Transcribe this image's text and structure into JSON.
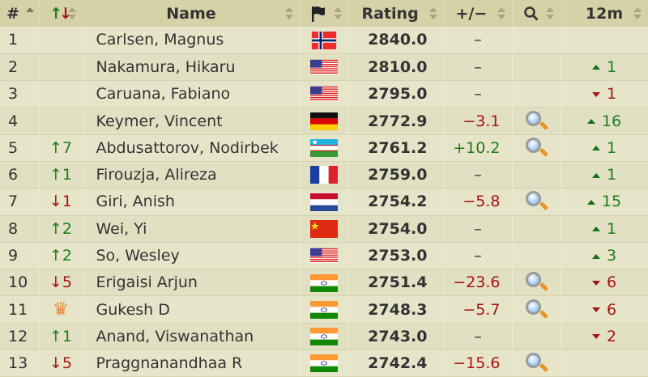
{
  "headers": {
    "rank": "#",
    "change": "↑↓",
    "name": "Name",
    "flag": "flag-icon",
    "rating": "Rating",
    "diff": "+/−",
    "search": "search-icon",
    "m12": "12m"
  },
  "rows": [
    {
      "rank": "1",
      "change": "",
      "change_dir": "",
      "name": "Carlsen, Magnus",
      "country": "NOR",
      "rating": "2840.0",
      "diff": "–",
      "diff_dir": "",
      "games": false,
      "m12": "",
      "m12_dir": ""
    },
    {
      "rank": "2",
      "change": "",
      "change_dir": "",
      "name": "Nakamura, Hikaru",
      "country": "USA",
      "rating": "2810.0",
      "diff": "–",
      "diff_dir": "",
      "games": false,
      "m12": "1",
      "m12_dir": "up"
    },
    {
      "rank": "3",
      "change": "",
      "change_dir": "",
      "name": "Caruana, Fabiano",
      "country": "USA",
      "rating": "2795.0",
      "diff": "–",
      "diff_dir": "",
      "games": false,
      "m12": "1",
      "m12_dir": "down"
    },
    {
      "rank": "4",
      "change": "",
      "change_dir": "",
      "name": "Keymer, Vincent",
      "country": "GER",
      "rating": "2772.9",
      "diff": "−3.1",
      "diff_dir": "down",
      "games": true,
      "m12": "16",
      "m12_dir": "up"
    },
    {
      "rank": "5",
      "change": "↑7",
      "change_dir": "up",
      "name": "Abdusattorov, Nodirbek",
      "country": "UZB",
      "rating": "2761.2",
      "diff": "+10.2",
      "diff_dir": "up",
      "games": true,
      "m12": "1",
      "m12_dir": "up"
    },
    {
      "rank": "6",
      "change": "↑1",
      "change_dir": "up",
      "name": "Firouzja, Alireza",
      "country": "FRA",
      "rating": "2759.0",
      "diff": "–",
      "diff_dir": "",
      "games": false,
      "m12": "1",
      "m12_dir": "up"
    },
    {
      "rank": "7",
      "change": "↓1",
      "change_dir": "down",
      "name": "Giri, Anish",
      "country": "NED",
      "rating": "2754.2",
      "diff": "−5.8",
      "diff_dir": "down",
      "games": true,
      "m12": "15",
      "m12_dir": "up"
    },
    {
      "rank": "8",
      "change": "↑2",
      "change_dir": "up",
      "name": "Wei, Yi",
      "country": "CHN",
      "rating": "2754.0",
      "diff": "–",
      "diff_dir": "",
      "games": false,
      "m12": "1",
      "m12_dir": "up"
    },
    {
      "rank": "9",
      "change": "↑2",
      "change_dir": "up",
      "name": "So, Wesley",
      "country": "USA",
      "rating": "2753.0",
      "diff": "–",
      "diff_dir": "",
      "games": false,
      "m12": "3",
      "m12_dir": "up"
    },
    {
      "rank": "10",
      "change": "↓5",
      "change_dir": "down",
      "name": "Erigaisi Arjun",
      "country": "IND",
      "rating": "2751.4",
      "diff": "−23.6",
      "diff_dir": "down",
      "games": true,
      "m12": "6",
      "m12_dir": "down"
    },
    {
      "rank": "11",
      "change": "crown-icon",
      "change_dir": "crown",
      "name": "Gukesh D",
      "country": "IND",
      "rating": "2748.3",
      "diff": "−5.7",
      "diff_dir": "down",
      "games": true,
      "m12": "6",
      "m12_dir": "down"
    },
    {
      "rank": "12",
      "change": "↑1",
      "change_dir": "up",
      "name": "Anand, Viswanathan",
      "country": "IND",
      "rating": "2743.0",
      "diff": "–",
      "diff_dir": "",
      "games": false,
      "m12": "2",
      "m12_dir": "down"
    },
    {
      "rank": "13",
      "change": "↓5",
      "change_dir": "down",
      "name": "Praggnanandhaa R",
      "country": "IND",
      "rating": "2742.4",
      "diff": "−15.6",
      "diff_dir": "down",
      "games": true,
      "m12": "",
      "m12_dir": ""
    }
  ],
  "colors": {
    "up": "#1e7b1e",
    "down": "#a31515",
    "header_bg": "#d5d2a7",
    "row_bg": "#e7e5c9",
    "crown": "#e8893a"
  }
}
